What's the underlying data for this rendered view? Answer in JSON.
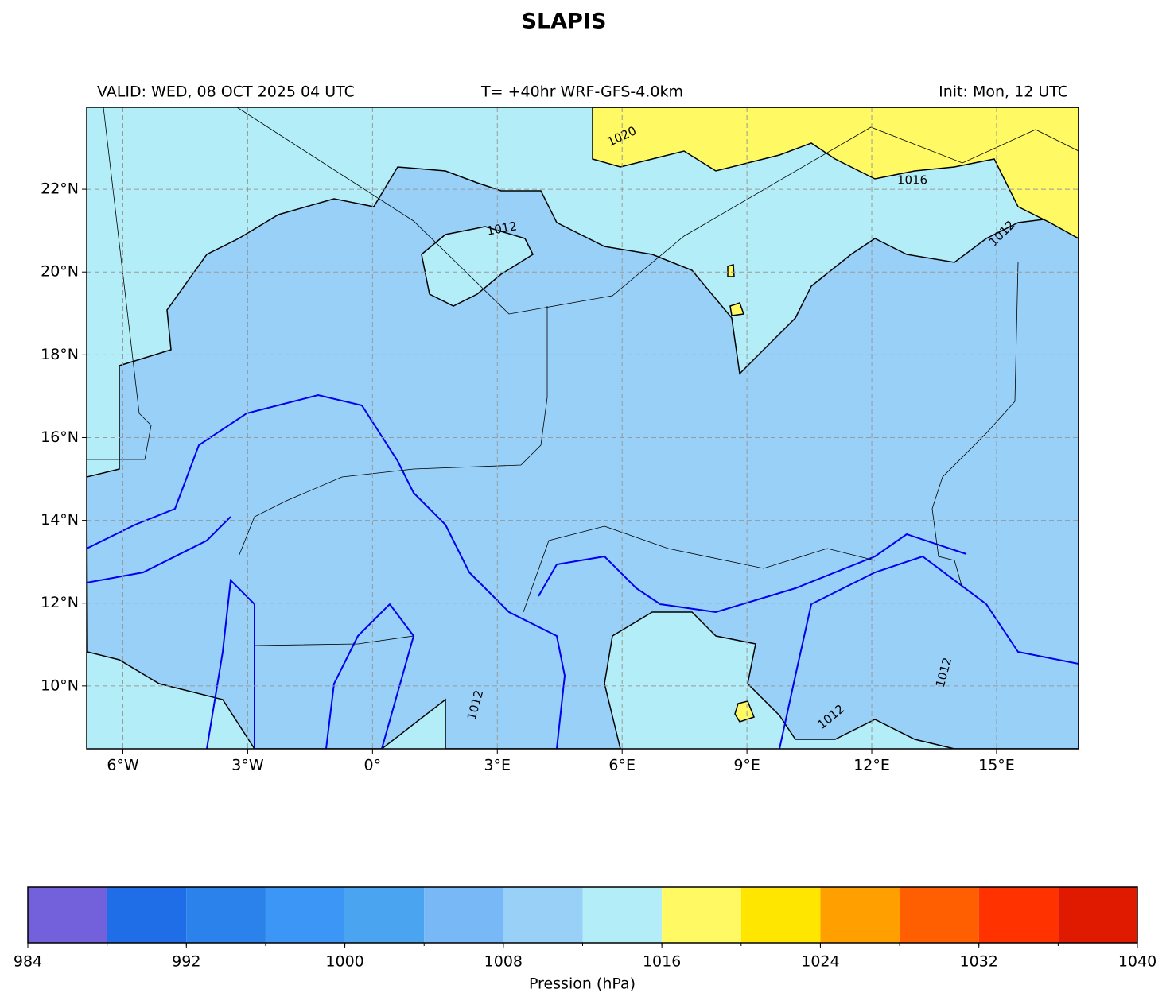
{
  "title": "SLAPIS",
  "valid": "VALID: WED, 08 OCT 2025 04 UTC",
  "run": "T= +40hr WRF-GFS-4.0km",
  "init": "Init: Mon, 12 UTC",
  "map": {
    "xlim": [
      -6.87,
      16.97
    ],
    "ylim": [
      8.48,
      23.98
    ],
    "xticks": [
      {
        "value": -6,
        "label": "6°W"
      },
      {
        "value": -3,
        "label": "3°W"
      },
      {
        "value": 0,
        "label": "0°"
      },
      {
        "value": 3,
        "label": "3°E"
      },
      {
        "value": 6,
        "label": "6°E"
      },
      {
        "value": 9,
        "label": "9°E"
      },
      {
        "value": 12,
        "label": "12°E"
      },
      {
        "value": 15,
        "label": "15°E"
      }
    ],
    "yticks": [
      {
        "value": 10,
        "label": "10°N"
      },
      {
        "value": 12,
        "label": "12°N"
      },
      {
        "value": 14,
        "label": "14°N"
      },
      {
        "value": 16,
        "label": "16°N"
      },
      {
        "value": 18,
        "label": "18°N"
      },
      {
        "value": 20,
        "label": "20°N"
      },
      {
        "value": 22,
        "label": "22°N"
      }
    ],
    "grid": true,
    "contour_labels": [
      "1020",
      "1016",
      "1012",
      "1012",
      "1012",
      "1012",
      "1012"
    ]
  },
  "colorbar": {
    "label": "Pression (hPa)",
    "bounds": [
      984,
      988,
      992,
      996,
      1000,
      1004,
      1008,
      1012,
      1016,
      1020,
      1024,
      1028,
      1032,
      1036,
      1040
    ],
    "colors": [
      "#7360db",
      "#1f6ee8",
      "#2a82ea",
      "#3c96f5",
      "#4ba4ef",
      "#78b8f7",
      "#98d0f8",
      "#b3eef8",
      "#fff964",
      "#ffe600",
      "#ffa000",
      "#ff5f00",
      "#ff3200",
      "#e01a00"
    ],
    "ticks": [
      984,
      992,
      1000,
      1008,
      1016,
      1024,
      1032,
      1040
    ]
  }
}
